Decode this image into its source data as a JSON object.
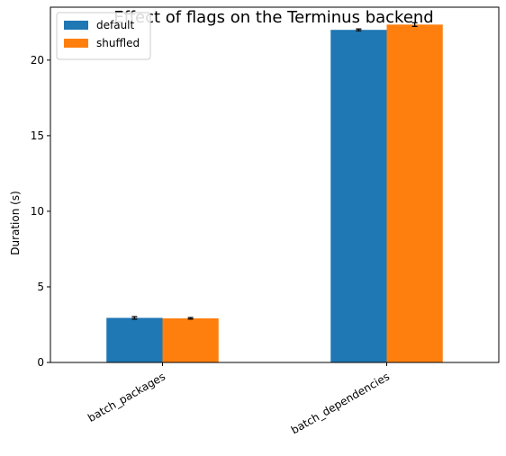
{
  "chart_data": {
    "type": "bar",
    "title": "Effect of flags on the Terminus backend",
    "xlabel": "",
    "ylabel": "Duration (s)",
    "categories": [
      "batch_packages",
      "batch_dependencies"
    ],
    "series": [
      {
        "name": "default",
        "color": "#1f77b4",
        "values": [
          2.95,
          22.0
        ],
        "errors": [
          0.08,
          0.06
        ]
      },
      {
        "name": "shuffled",
        "color": "#ff7f0e",
        "values": [
          2.92,
          22.35
        ],
        "errors": [
          0.05,
          0.12
        ]
      }
    ],
    "ylim": [
      0,
      23.5
    ],
    "yticks": [
      0,
      5,
      10,
      15,
      20
    ],
    "grid": false,
    "legend_position": "top-left"
  }
}
